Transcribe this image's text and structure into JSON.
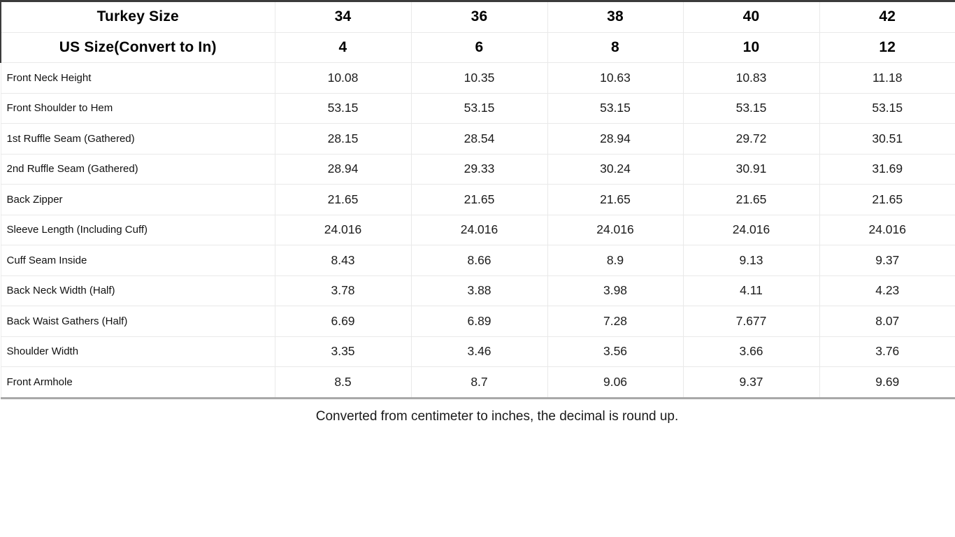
{
  "table": {
    "header_rows": [
      {
        "label": "Turkey Size",
        "values": [
          "34",
          "36",
          "38",
          "40",
          "42"
        ]
      },
      {
        "label": "US Size(Convert to In)",
        "values": [
          "4",
          "6",
          "8",
          "10",
          "12"
        ]
      }
    ],
    "rows": [
      {
        "label": "Front Neck Height",
        "values": [
          "10.08",
          "10.35",
          "10.63",
          "10.83",
          "11.18"
        ]
      },
      {
        "label": "Front Shoulder to Hem",
        "values": [
          "53.15",
          "53.15",
          "53.15",
          "53.15",
          "53.15"
        ]
      },
      {
        "label": "1st Ruffle Seam (Gathered)",
        "values": [
          "28.15",
          "28.54",
          "28.94",
          "29.72",
          "30.51"
        ]
      },
      {
        "label": "2nd Ruffle Seam (Gathered)",
        "values": [
          "28.94",
          "29.33",
          "30.24",
          "30.91",
          "31.69"
        ]
      },
      {
        "label": "Back Zipper",
        "values": [
          "21.65",
          "21.65",
          "21.65",
          "21.65",
          "21.65"
        ]
      },
      {
        "label": "Sleeve Length (Including Cuff)",
        "values": [
          "24.016",
          "24.016",
          "24.016",
          "24.016",
          "24.016"
        ]
      },
      {
        "label": "Cuff Seam Inside",
        "values": [
          "8.43",
          "8.66",
          "8.9",
          "9.13",
          "9.37"
        ]
      },
      {
        "label": "Back Neck Width (Half)",
        "values": [
          "3.78",
          "3.88",
          "3.98",
          "4.11",
          "4.23"
        ]
      },
      {
        "label": "Back Waist Gathers (Half)",
        "values": [
          "6.69",
          "6.89",
          "7.28",
          "7.677",
          "8.07"
        ]
      },
      {
        "label": "Shoulder Width",
        "values": [
          "3.35",
          "3.46",
          "3.56",
          "3.66",
          "3.76"
        ]
      },
      {
        "label": "Front Armhole",
        "values": [
          "8.5",
          "8.7",
          "9.06",
          "9.37",
          "9.69"
        ]
      }
    ]
  },
  "footnote": "Converted from centimeter to inches, the decimal is round up.",
  "colors": {
    "header_border": "#3b3b3b",
    "grid_border": "#e9e9e9",
    "shadow_border": "#a8a8a8",
    "text": "#161616",
    "background": "#ffffff"
  }
}
